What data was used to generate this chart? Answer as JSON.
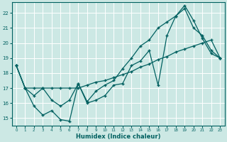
{
  "xlabel": "Humidex (Indice chaleur)",
  "ylabel": "",
  "background_color": "#cce8e4",
  "line_color": "#006060",
  "xlim": [
    -0.5,
    23.5
  ],
  "ylim": [
    14.5,
    22.7
  ],
  "yticks": [
    15,
    16,
    17,
    18,
    19,
    20,
    21,
    22
  ],
  "xticks": [
    0,
    1,
    2,
    3,
    4,
    5,
    6,
    7,
    8,
    9,
    10,
    11,
    12,
    13,
    14,
    15,
    16,
    17,
    18,
    19,
    20,
    21,
    22,
    23
  ],
  "series": [
    {
      "x": [
        0,
        1,
        2,
        3,
        4,
        5,
        6,
        7,
        8,
        9,
        10,
        11,
        12,
        13,
        14,
        15,
        16,
        17,
        18,
        19,
        20,
        21,
        22,
        23
      ],
      "y": [
        18.5,
        17.0,
        15.8,
        15.2,
        15.5,
        14.9,
        14.8,
        17.3,
        16.0,
        16.2,
        16.5,
        17.2,
        17.3,
        18.5,
        18.8,
        19.5,
        17.2,
        20.5,
        21.8,
        22.5,
        21.5,
        20.3,
        19.3,
        19.0
      ]
    },
    {
      "x": [
        0,
        1,
        2,
        3,
        4,
        5,
        6,
        7,
        8,
        9,
        10,
        11,
        12,
        13,
        14,
        15,
        16,
        17,
        18,
        19,
        20,
        21,
        22,
        23
      ],
      "y": [
        18.5,
        17.0,
        16.5,
        17.0,
        16.2,
        15.8,
        16.2,
        17.3,
        16.1,
        16.8,
        17.2,
        17.5,
        18.3,
        19.0,
        19.8,
        20.2,
        21.0,
        21.4,
        21.8,
        22.3,
        21.0,
        20.5,
        19.5,
        19.0
      ]
    },
    {
      "x": [
        0,
        1,
        2,
        3,
        4,
        5,
        6,
        7,
        8,
        9,
        10,
        11,
        12,
        13,
        14,
        15,
        16,
        17,
        18,
        19,
        20,
        21,
        22,
        23
      ],
      "y": [
        18.5,
        17.0,
        17.0,
        17.0,
        17.0,
        17.0,
        17.0,
        17.0,
        17.2,
        17.4,
        17.5,
        17.7,
        17.9,
        18.1,
        18.4,
        18.6,
        18.9,
        19.1,
        19.4,
        19.6,
        19.8,
        20.0,
        20.2,
        19.0
      ]
    }
  ]
}
